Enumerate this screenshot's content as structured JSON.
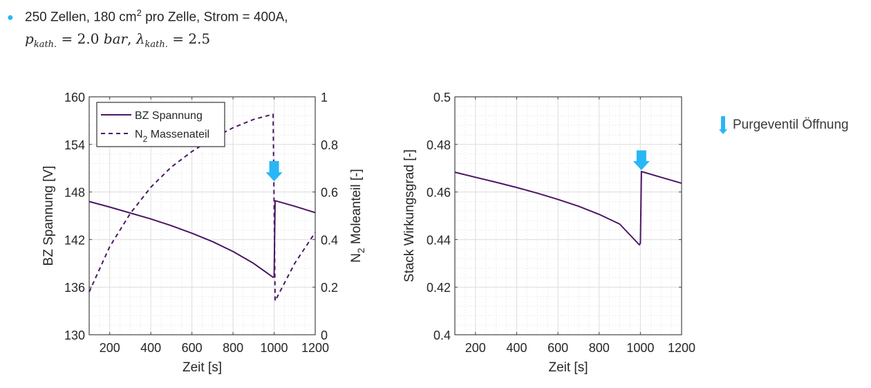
{
  "header": {
    "bullet_text_pre": "250 Zellen, 180 cm",
    "bullet_sup": "2",
    "bullet_text_post": " pro Zelle, Strom = 400A,",
    "formula": {
      "p_symbol": "p",
      "p_sub": "kath.",
      "p_value": " = 2.0 ",
      "p_unit": "bar",
      "sep": ", ",
      "lambda_symbol": "λ",
      "lambda_sub": "kath.",
      "lambda_value": " = 2.5"
    }
  },
  "legend_right": {
    "label": "Purgeventil Öffnung",
    "icon": "down-arrow-icon",
    "color": "#29b6f6"
  },
  "colors": {
    "line": "#4b1664",
    "arrow": "#29b6f6",
    "grid": "#dcdcdc",
    "axis": "#262626"
  },
  "chart_data": [
    {
      "type": "line",
      "title": "",
      "xlabel": "Zeit [s]",
      "ylabel": "BZ Spannung [V]",
      "ylabel_right": "N₂ Moleanteil [-]",
      "ylabel_right_main": "N",
      "ylabel_right_sub": "2",
      "ylabel_right_rest": " Moleanteil [-]",
      "xlim": [
        100,
        1200
      ],
      "ylim": [
        130,
        160
      ],
      "ylim_right": [
        0,
        1
      ],
      "xticks": [
        200,
        400,
        600,
        800,
        1000,
        1200
      ],
      "yticks": [
        130,
        136,
        142,
        148,
        154,
        160
      ],
      "yticks_right": [
        0,
        0.2,
        0.4,
        0.6,
        0.8,
        1
      ],
      "grid": true,
      "legend_position": "top-left",
      "legend": [
        {
          "name": "BZ Spannung",
          "main": "BZ Spannung",
          "sub": "",
          "rest": "",
          "style": "solid"
        },
        {
          "name": "N2 Massenateil",
          "main": "N",
          "sub": "2",
          "rest": " Massenateil",
          "style": "dashed"
        }
      ],
      "series": [
        {
          "name": "BZ Spannung",
          "axis": "left",
          "style": "solid",
          "x": [
            100,
            200,
            300,
            400,
            500,
            600,
            700,
            800,
            900,
            995,
            1000,
            1005,
            1100,
            1200
          ],
          "y": [
            146.8,
            146.1,
            145.35,
            144.6,
            143.75,
            142.8,
            141.75,
            140.5,
            139.0,
            137.25,
            137.3,
            146.9,
            146.2,
            145.4
          ]
        },
        {
          "name": "N2 Massenateil",
          "axis": "right",
          "style": "dashed",
          "x": [
            100,
            200,
            300,
            400,
            500,
            600,
            700,
            800,
            900,
            995,
            1000,
            1005,
            1100,
            1200
          ],
          "y": [
            0.18,
            0.37,
            0.51,
            0.62,
            0.705,
            0.77,
            0.825,
            0.87,
            0.905,
            0.927,
            0.55,
            0.142,
            0.3,
            0.43
          ]
        }
      ],
      "annotations": [
        {
          "type": "arrow-down",
          "x": 1000,
          "y_right_top": 0.73,
          "y_right_tip": 0.645,
          "label": "Purgeventil Öffnung"
        }
      ]
    },
    {
      "type": "line",
      "title": "",
      "xlabel": "Zeit [s]",
      "ylabel": "Stack Wirkungsgrad [-]",
      "xlim": [
        100,
        1200
      ],
      "ylim": [
        0.4,
        0.5
      ],
      "xticks": [
        200,
        400,
        600,
        800,
        1000,
        1200
      ],
      "yticks": [
        0.4,
        0.42,
        0.44,
        0.46,
        0.48,
        0.5
      ],
      "ytick_labels": [
        "0.4",
        "0.42",
        "0.44",
        "0.46",
        "0.48",
        "0.5"
      ],
      "grid": true,
      "series": [
        {
          "name": "Stack Wirkungsgrad",
          "style": "solid",
          "x": [
            100,
            200,
            300,
            400,
            500,
            600,
            700,
            800,
            900,
            995,
            1000,
            1005,
            1100,
            1200
          ],
          "y": [
            0.4683,
            0.4662,
            0.4641,
            0.4619,
            0.4595,
            0.4569,
            0.454,
            0.4506,
            0.4465,
            0.4378,
            0.4385,
            0.4686,
            0.4662,
            0.4637
          ]
        }
      ],
      "annotations": [
        {
          "type": "arrow-down",
          "x": 1005,
          "y_top": 0.4775,
          "y_tip": 0.4692,
          "label": "Purgeventil Öffnung"
        }
      ]
    }
  ]
}
